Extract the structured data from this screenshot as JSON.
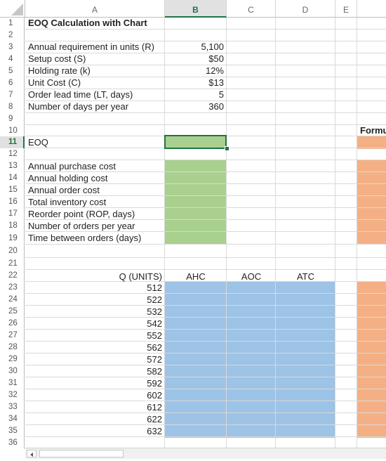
{
  "columns": [
    "A",
    "B",
    "C",
    "D",
    "E"
  ],
  "active_column": "B",
  "active_row": "11",
  "rows": [
    "1",
    "2",
    "3",
    "4",
    "5",
    "6",
    "7",
    "8",
    "9",
    "10",
    "11",
    "12",
    "13",
    "14",
    "15",
    "16",
    "17",
    "18",
    "19",
    "20",
    "21",
    "22",
    "23",
    "24",
    "25",
    "26",
    "27",
    "28",
    "29",
    "30",
    "31",
    "32",
    "33",
    "34",
    "35",
    "36"
  ],
  "title": "EOQ Calculation with Chart",
  "inputs": [
    {
      "label": "Annual requirement in units (R)",
      "value": "5,100"
    },
    {
      "label": "Setup cost (S)",
      "value": "$50"
    },
    {
      "label": "Holding rate (k)",
      "value": "12%"
    },
    {
      "label": "Unit Cost (C)",
      "value": "$13"
    },
    {
      "label": "Order lead time (LT, days)",
      "value": "5"
    },
    {
      "label": "Number of days per year",
      "value": "360"
    }
  ],
  "formula_header": "Formu",
  "eoq_label": "EOQ",
  "outputs": [
    "Annual purchase cost",
    "Annual holding cost",
    "Annual order cost",
    "Total inventory cost",
    "Reorder point (ROP, days)",
    "Number of orders per year",
    "Time between orders (days)"
  ],
  "table_headers": [
    "Q (UNITS)",
    "AHC",
    "AOC",
    "ATC"
  ],
  "q_values": [
    "512",
    "522",
    "532",
    "542",
    "552",
    "562",
    "572",
    "582",
    "592",
    "602",
    "612",
    "622",
    "632"
  ],
  "colors": {
    "green_fill": "#a9d08e",
    "blue_fill": "#9dc3e6",
    "orange_fill": "#f4b084",
    "selection": "#217346"
  }
}
